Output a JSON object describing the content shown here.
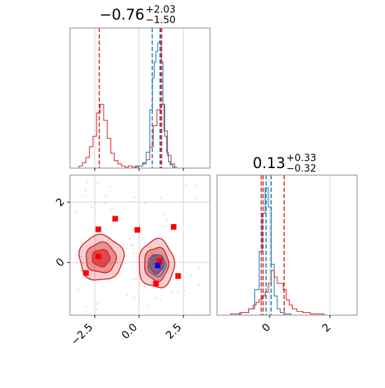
{
  "chart_data": [
    {
      "type": "line",
      "panel": "marginal-top",
      "title": {
        "value": "−0.76",
        "upper": "+2.03",
        "lower": "−1.50"
      },
      "xlim": [
        -3.9,
        4.0
      ],
      "grid": true,
      "markers": {
        "red": [
          -2.25,
          1.22,
          1.27
        ],
        "blue": [
          0.74,
          1.18
        ]
      },
      "series": [
        {
          "color": "#d62728",
          "x": [
            -3.5,
            -3.3,
            -3.1,
            -2.9,
            -2.7,
            -2.5,
            -2.3,
            -2.1,
            -1.9,
            -1.7,
            -1.5,
            -1.3,
            -1.1,
            -0.9,
            -0.7,
            -0.5,
            -0.3,
            -0.1,
            0.1,
            0.3,
            0.5,
            0.7,
            0.9,
            1.1,
            1.3,
            1.5,
            1.7,
            1.9,
            2.1
          ],
          "y": [
            0,
            0.02,
            0.05,
            0.1,
            0.2,
            0.3,
            0.52,
            0.6,
            0.45,
            0.28,
            0.14,
            0.07,
            0.04,
            0.02,
            0.01,
            0.02,
            0.01,
            0.02,
            0.02,
            0.04,
            0.08,
            0.2,
            0.4,
            0.55,
            0.6,
            0.35,
            0.12,
            0.04,
            0
          ]
        },
        {
          "color": "#1f77b4",
          "x": [
            -0.3,
            -0.1,
            0.1,
            0.3,
            0.5,
            0.7,
            0.8,
            0.9,
            1.0,
            1.1,
            1.2,
            1.3,
            1.4,
            1.5,
            1.6,
            1.7,
            1.8,
            2.0,
            2.2
          ],
          "y": [
            0,
            0.01,
            0.02,
            0.05,
            0.15,
            0.55,
            0.85,
            1.0,
            1.1,
            1.18,
            1.2,
            1.0,
            0.6,
            0.3,
            0.15,
            0.06,
            0.03,
            0.01,
            0
          ]
        }
      ]
    },
    {
      "type": "line",
      "panel": "marginal-right",
      "title": {
        "value": "0.13",
        "upper": "+0.33",
        "lower": "−0.32"
      },
      "xlim": [
        -1.75,
        2.9
      ],
      "xticks": [
        "0",
        "2"
      ],
      "grid": true,
      "markers": {
        "red": [
          -0.22,
          0.48,
          -0.28
        ],
        "blue": [
          -0.12,
          0.05
        ]
      },
      "series": [
        {
          "color": "#1f77b4",
          "x": [
            -1.2,
            -0.8,
            -0.6,
            -0.4,
            -0.3,
            -0.2,
            -0.1,
            0.0,
            0.1,
            0.2,
            0.3,
            0.4,
            0.6,
            0.8
          ],
          "y": [
            0,
            0.02,
            0.05,
            0.2,
            0.5,
            0.8,
            1.0,
            0.85,
            0.4,
            0.15,
            0.05,
            0.02,
            0.01,
            0
          ]
        },
        {
          "color": "#d62728",
          "x": [
            -1.5,
            -1.1,
            -0.8,
            -0.6,
            -0.5,
            -0.4,
            -0.3,
            -0.2,
            -0.1,
            0.0,
            0.1,
            0.2,
            0.3,
            0.4,
            0.5,
            0.6,
            0.7,
            0.8,
            1.0,
            1.2,
            1.5,
            2.1
          ],
          "y": [
            0,
            0.01,
            0.02,
            0.05,
            0.08,
            0.1,
            0.12,
            0.15,
            0.18,
            0.25,
            0.35,
            0.3,
            0.25,
            0.25,
            0.2,
            0.12,
            0.08,
            0.05,
            0.03,
            0.02,
            0.01,
            0
          ]
        }
      ]
    },
    {
      "type": "scatter",
      "panel": "joint",
      "xlim": [
        -3.9,
        4.0
      ],
      "ylim": [
        -1.75,
        2.9
      ],
      "xticks": [
        "−2.5",
        "0.0",
        "2.5"
      ],
      "yticks": [
        "0",
        "2"
      ],
      "grid": true,
      "contours": [
        {
          "color": "#d62728",
          "cx": -2.15,
          "cy": 0.15,
          "levels": [
            [
              1.25,
              0.75
            ],
            [
              0.85,
              0.5
            ],
            [
              0.5,
              0.28
            ]
          ]
        },
        {
          "color": "#d62728",
          "cx": 0.98,
          "cy": -0.05,
          "levels": [
            [
              1.0,
              0.8
            ],
            [
              0.68,
              0.55
            ],
            [
              0.4,
              0.32
            ]
          ]
        },
        {
          "color": "#1f77b4",
          "cx": 1.0,
          "cy": -0.1,
          "levels": [
            [
              0.5,
              0.35
            ],
            [
              0.3,
              0.22
            ]
          ]
        }
      ],
      "points": {
        "red": [
          [
            -2.3,
            1.1
          ],
          [
            -1.35,
            1.45
          ],
          [
            -0.1,
            1.08
          ],
          [
            1.95,
            1.18
          ],
          [
            -3.0,
            -0.35
          ],
          [
            -2.3,
            0.2
          ],
          [
            0.95,
            -0.7
          ],
          [
            2.2,
            -0.45
          ],
          [
            1.15,
            0.05
          ]
        ],
        "blue": [
          [
            1.05,
            -0.1
          ]
        ]
      }
    }
  ]
}
